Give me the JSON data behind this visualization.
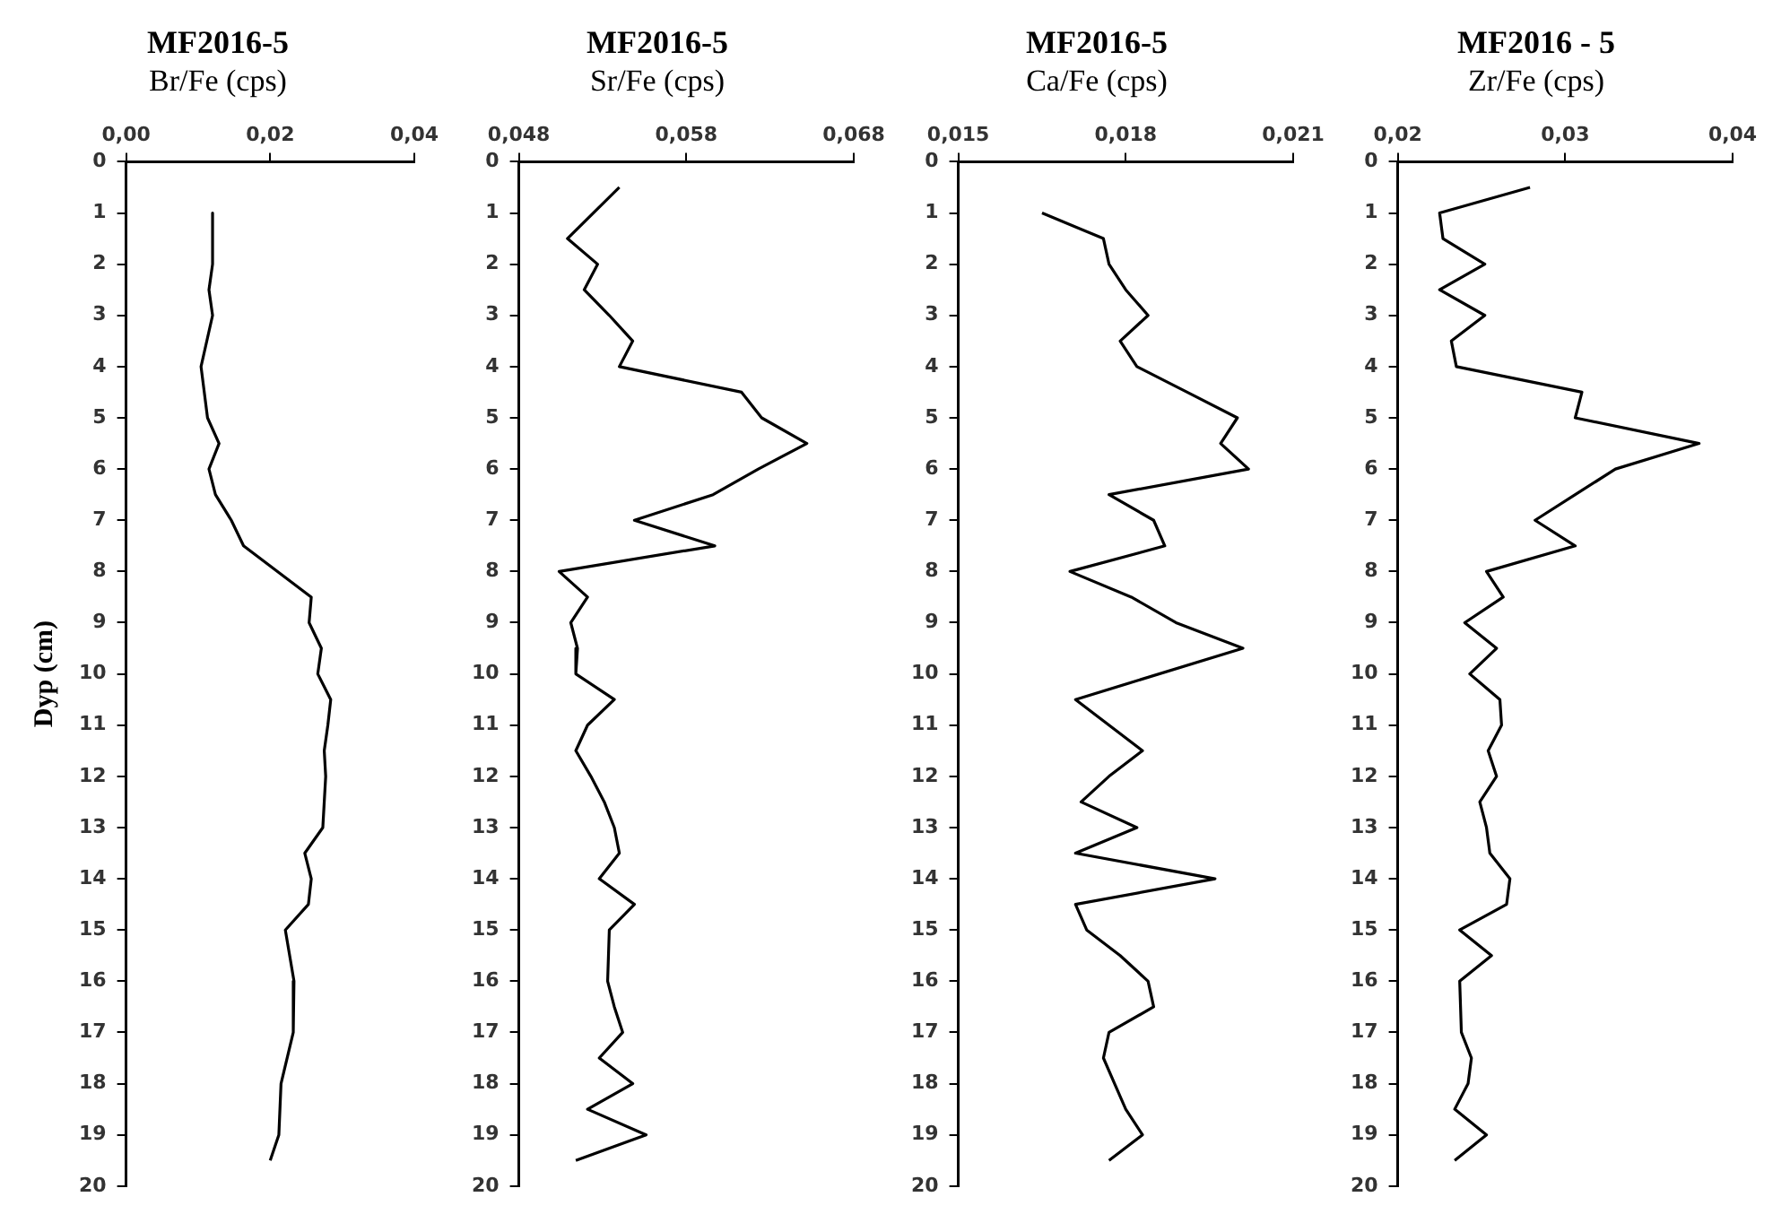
{
  "chart_data": [
    {
      "type": "line",
      "title": "MF2016-5",
      "subtitle": "Br/Fe (cps)",
      "ylabel": "Dyp (cm)",
      "marker": "none",
      "grid": false,
      "xlim": [
        0,
        0.04
      ],
      "xticks": [
        {
          "value": 0,
          "label": "0,00"
        },
        {
          "value": 0.02,
          "label": "0,02"
        },
        {
          "value": 0.04,
          "label": "0,04"
        }
      ],
      "ylim": [
        20,
        0
      ],
      "yticks": [
        0,
        1,
        2,
        3,
        4,
        5,
        6,
        7,
        8,
        9,
        10,
        11,
        12,
        13,
        14,
        15,
        16,
        17,
        18,
        19,
        20
      ],
      "series": [
        {
          "color": "#000000",
          "x": [
            0.012,
            0.012,
            0.0115,
            0.012,
            0.0104,
            0.0113,
            0.0129,
            0.0115,
            0.0124,
            0.0146,
            0.0163,
            0.0257,
            0.0254,
            0.0271,
            0.0266,
            0.0284,
            0.028,
            0.0275,
            0.0277,
            0.0275,
            0.0273,
            0.0248,
            0.0257,
            0.0253,
            0.0221,
            0.0233,
            0.0232,
            0.0215,
            0.0212,
            0.02
          ],
          "values": [
            1,
            2,
            2.5,
            3,
            4,
            5,
            5.5,
            6,
            6.5,
            7,
            7.5,
            8.5,
            9,
            9.5,
            10,
            10.5,
            11,
            11.5,
            12,
            12.5,
            13,
            13.5,
            14,
            14.5,
            15,
            16,
            17,
            18,
            19,
            19.5
          ]
        }
      ]
    },
    {
      "type": "line",
      "title": "MF2016-5",
      "subtitle": "Sr/Fe (cps)",
      "marker": "none",
      "grid": false,
      "xlim": [
        0.048,
        0.068
      ],
      "xticks": [
        {
          "value": 0.048,
          "label": "0,048"
        },
        {
          "value": 0.058,
          "label": "0,058"
        },
        {
          "value": 0.068,
          "label": "0,068"
        }
      ],
      "ylim": [
        20,
        0
      ],
      "yticks": [
        0,
        1,
        2,
        3,
        4,
        5,
        6,
        7,
        8,
        9,
        10,
        11,
        12,
        13,
        14,
        15,
        16,
        17,
        18,
        19,
        20
      ],
      "series": [
        {
          "color": "#000000",
          "x": [
            0.054,
            0.0509,
            0.0527,
            0.0519,
            0.0534,
            0.0548,
            0.054,
            0.0613,
            0.0625,
            0.0652,
            0.0623,
            0.0596,
            0.0549,
            0.0597,
            0.0504,
            0.0521,
            0.0511,
            0.0515,
            0.0514,
            0.0537,
            0.0521,
            0.0514,
            0.0523,
            0.0531,
            0.0537,
            0.054,
            0.0528,
            0.0549,
            0.0534,
            0.0533,
            0.0537,
            0.0542,
            0.0528,
            0.0548,
            0.0521,
            0.0556,
            0.0514
          ],
          "values": [
            0.5,
            1.5,
            2,
            2.5,
            3,
            3.5,
            4,
            4.5,
            5,
            5.5,
            6,
            6.5,
            7,
            7.5,
            8,
            8.5,
            9,
            9.5,
            10,
            10.5,
            11,
            11.5,
            12,
            12.5,
            13,
            13.5,
            14,
            14.5,
            15,
            16,
            16.5,
            17,
            17.5,
            18,
            18.5,
            19,
            19.5
          ]
        }
      ]
    },
    {
      "type": "line",
      "title": "MF2016-5",
      "subtitle": "Ca/Fe (cps)",
      "marker": "none",
      "grid": false,
      "xlim": [
        0.015,
        0.021
      ],
      "xticks": [
        {
          "value": 0.015,
          "label": "0,015"
        },
        {
          "value": 0.018,
          "label": "0,018"
        },
        {
          "value": 0.021,
          "label": "0,021"
        }
      ],
      "ylim": [
        20,
        0
      ],
      "yticks": [
        0,
        1,
        2,
        3,
        4,
        5,
        6,
        7,
        8,
        9,
        10,
        11,
        12,
        13,
        14,
        15,
        16,
        17,
        18,
        19,
        20
      ],
      "series": [
        {
          "color": "#000000",
          "x": [
            0.0165,
            0.0176,
            0.0177,
            0.018,
            0.0184,
            0.0179,
            0.0182,
            0.0191,
            0.02,
            0.0197,
            0.0202,
            0.0177,
            0.0185,
            0.0187,
            0.017,
            0.0181,
            0.0189,
            0.0201,
            0.0171,
            0.0177,
            0.0183,
            0.0177,
            0.0172,
            0.0182,
            0.0171,
            0.0196,
            0.0171,
            0.0173,
            0.0179,
            0.0184,
            0.0185,
            0.0177,
            0.0176,
            0.0178,
            0.018,
            0.0183,
            0.0177
          ],
          "values": [
            1,
            1.5,
            2,
            2.5,
            3,
            3.5,
            4,
            4.5,
            5,
            5.5,
            6,
            6.5,
            7,
            7.5,
            8,
            8.5,
            9,
            9.5,
            10.5,
            11,
            11.5,
            12,
            12.5,
            13,
            13.5,
            14,
            14.5,
            15,
            15.5,
            16,
            16.5,
            17,
            17.5,
            18,
            18.5,
            19,
            19.5
          ]
        }
      ]
    },
    {
      "type": "line",
      "title": "MF2016 - 5",
      "subtitle": "Zr/Fe (cps)",
      "marker": "none",
      "grid": false,
      "xlim": [
        0.02,
        0.04
      ],
      "xticks": [
        {
          "value": 0.02,
          "label": "0,02"
        },
        {
          "value": 0.03,
          "label": "0,03"
        },
        {
          "value": 0.04,
          "label": "0,04"
        }
      ],
      "ylim": [
        20,
        0
      ],
      "yticks": [
        0,
        1,
        2,
        3,
        4,
        5,
        6,
        7,
        8,
        9,
        10,
        11,
        12,
        13,
        14,
        15,
        16,
        17,
        18,
        19,
        20
      ],
      "series": [
        {
          "color": "#000000",
          "x": [
            0.0279,
            0.0225,
            0.0227,
            0.0252,
            0.0225,
            0.0252,
            0.0232,
            0.0235,
            0.031,
            0.0306,
            0.038,
            0.033,
            0.0306,
            0.0282,
            0.0306,
            0.0253,
            0.0263,
            0.024,
            0.0259,
            0.0243,
            0.0261,
            0.0262,
            0.0254,
            0.0259,
            0.0249,
            0.0253,
            0.0255,
            0.0267,
            0.0265,
            0.0237,
            0.0256,
            0.0237,
            0.0238,
            0.0244,
            0.0242,
            0.0234,
            0.0253,
            0.0234
          ],
          "values": [
            0.5,
            1,
            1.5,
            2,
            2.5,
            3,
            3.5,
            4,
            4.5,
            5,
            5.5,
            6,
            6.5,
            7,
            7.5,
            8,
            8.5,
            9,
            9.5,
            10,
            10.5,
            11,
            11.5,
            12,
            12.5,
            13,
            13.5,
            14,
            14.5,
            15,
            15.5,
            16,
            17,
            17.5,
            18,
            18.5,
            19,
            19.5
          ]
        }
      ]
    }
  ]
}
